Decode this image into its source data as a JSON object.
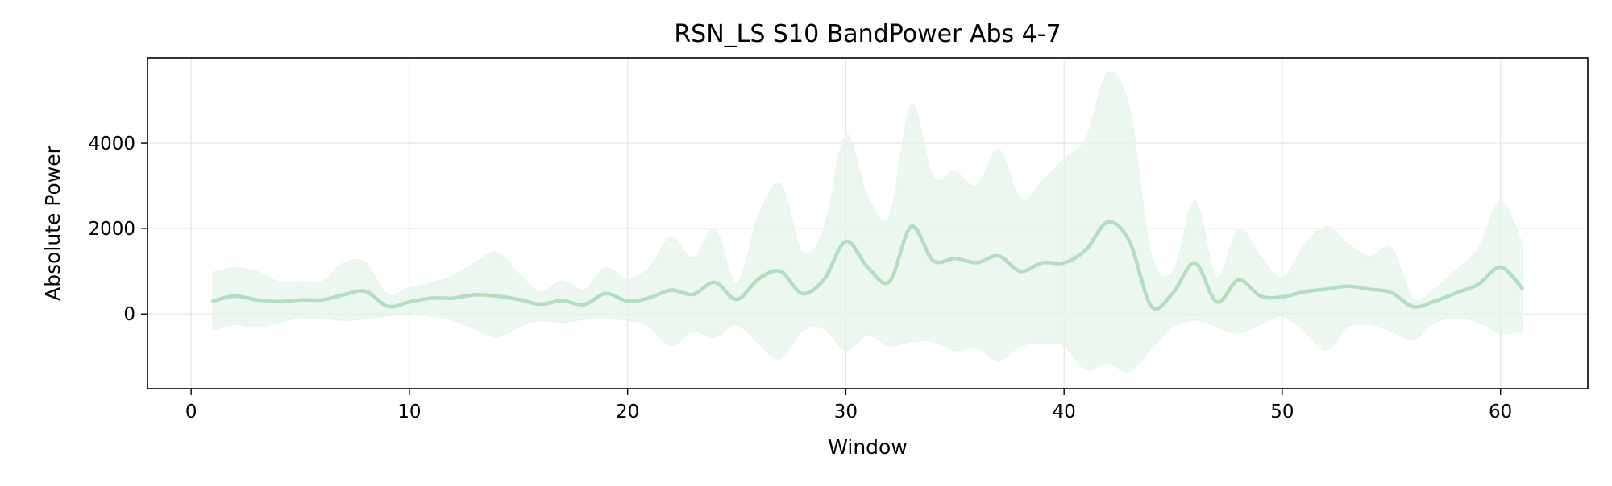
{
  "chart_data": {
    "type": "line",
    "title": "RSN_LS S10 BandPower Abs 4-7",
    "xlabel": "Window",
    "ylabel": "Absolute Power",
    "xlim": [
      -2,
      64
    ],
    "ylim": [
      -1750,
      6000
    ],
    "x_ticks": [
      0,
      10,
      20,
      30,
      40,
      50,
      60
    ],
    "x_tick_labels": [
      "0",
      "10",
      "20",
      "30",
      "40",
      "50",
      "60"
    ],
    "y_ticks": [
      0,
      2000,
      4000
    ],
    "y_tick_labels": [
      "0",
      "2000",
      "4000"
    ],
    "grid": true,
    "legend": "none",
    "colors": {
      "line": "#b2dfc0",
      "band": "#e6f4ea",
      "grid": "#e4e4e4",
      "axes": "#000000"
    },
    "series": [
      {
        "x": [
          1,
          2,
          3,
          4,
          5,
          6,
          7,
          8,
          9,
          10,
          11,
          12,
          13,
          14,
          15,
          16,
          17,
          18,
          19,
          20,
          21,
          22,
          23,
          24,
          25,
          26,
          27,
          28,
          29,
          30,
          31,
          32,
          33,
          34,
          35,
          36,
          37,
          38,
          39,
          40,
          41,
          42,
          43,
          44,
          45,
          46,
          47,
          48,
          49,
          50,
          51,
          52,
          53,
          54,
          55,
          56,
          57,
          58,
          59,
          60,
          61
        ],
        "mean": [
          300,
          420,
          330,
          290,
          330,
          330,
          450,
          530,
          180,
          280,
          370,
          370,
          450,
          420,
          340,
          230,
          310,
          220,
          480,
          300,
          380,
          560,
          460,
          740,
          340,
          820,
          1000,
          480,
          810,
          1700,
          1100,
          760,
          2050,
          1250,
          1300,
          1200,
          1360,
          1000,
          1200,
          1200,
          1500,
          2150,
          1700,
          180,
          500,
          1200,
          280,
          800,
          420,
          400,
          520,
          580,
          650,
          580,
          500,
          170,
          300,
          500,
          700,
          1100,
          600
        ],
        "upper": [
          980,
          1080,
          1000,
          760,
          760,
          760,
          1200,
          1200,
          450,
          620,
          720,
          900,
          1200,
          1450,
          950,
          520,
          780,
          560,
          1080,
          800,
          1100,
          1800,
          1300,
          2000,
          700,
          2300,
          3050,
          1450,
          2000,
          4200,
          2750,
          2300,
          4900,
          3200,
          3350,
          3000,
          3850,
          2700,
          3100,
          3650,
          4100,
          5650,
          4800,
          1400,
          1000,
          2650,
          850,
          2000,
          1350,
          850,
          1600,
          2050,
          1650,
          1350,
          1550,
          350,
          600,
          1050,
          1550,
          2650,
          1650
        ],
        "lower": [
          -380,
          -250,
          -320,
          -200,
          -100,
          -100,
          -160,
          -120,
          -50,
          0,
          -50,
          -150,
          -350,
          -550,
          -300,
          -160,
          -200,
          -130,
          -120,
          -150,
          -300,
          -750,
          -400,
          -550,
          -250,
          -700,
          -1050,
          -400,
          -350,
          -850,
          -500,
          -750,
          -650,
          -650,
          -850,
          -800,
          -1100,
          -750,
          -700,
          -750,
          -1300,
          -1150,
          -1350,
          -800,
          -300,
          -150,
          -300,
          -450,
          -250,
          -50,
          -400,
          -850,
          -300,
          -250,
          -400,
          -600,
          -200,
          -100,
          -200,
          -450,
          -400
        ]
      }
    ]
  }
}
